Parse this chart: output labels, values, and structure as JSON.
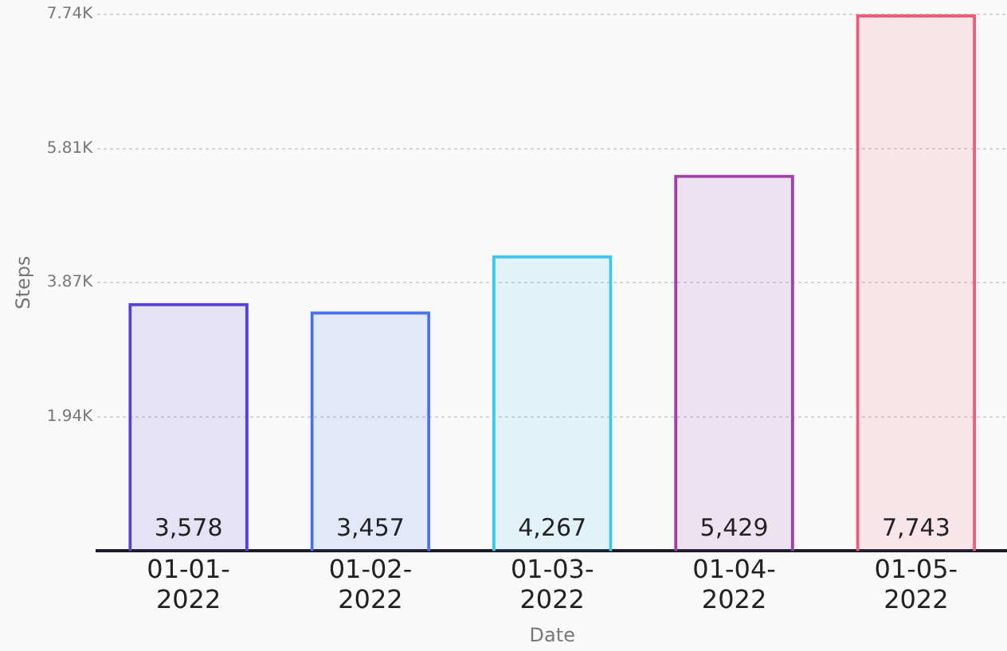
{
  "chart_data": {
    "type": "bar",
    "xlabel": "Date",
    "ylabel": "Steps",
    "categories": [
      "01-01-2022",
      "01-02-2022",
      "01-03-2022",
      "01-04-2022",
      "01-05-2022"
    ],
    "values": [
      3578,
      3457,
      4267,
      5429,
      7743
    ],
    "colors": [
      "#5b3fd6",
      "#4a72ee",
      "#3cc8ec",
      "#a040a8",
      "#ee5a78"
    ],
    "ylim": [
      0,
      7743
    ],
    "yticks": [
      {
        "value": 1936,
        "label": "1.94K"
      },
      {
        "value": 3872,
        "label": "3.87K"
      },
      {
        "value": 5807,
        "label": "5.81K"
      },
      {
        "value": 7743,
        "label": "7.74K"
      }
    ],
    "value_labels": [
      "3,578",
      "3,457",
      "4,267",
      "5,429",
      "7,743"
    ],
    "grid": "y"
  }
}
